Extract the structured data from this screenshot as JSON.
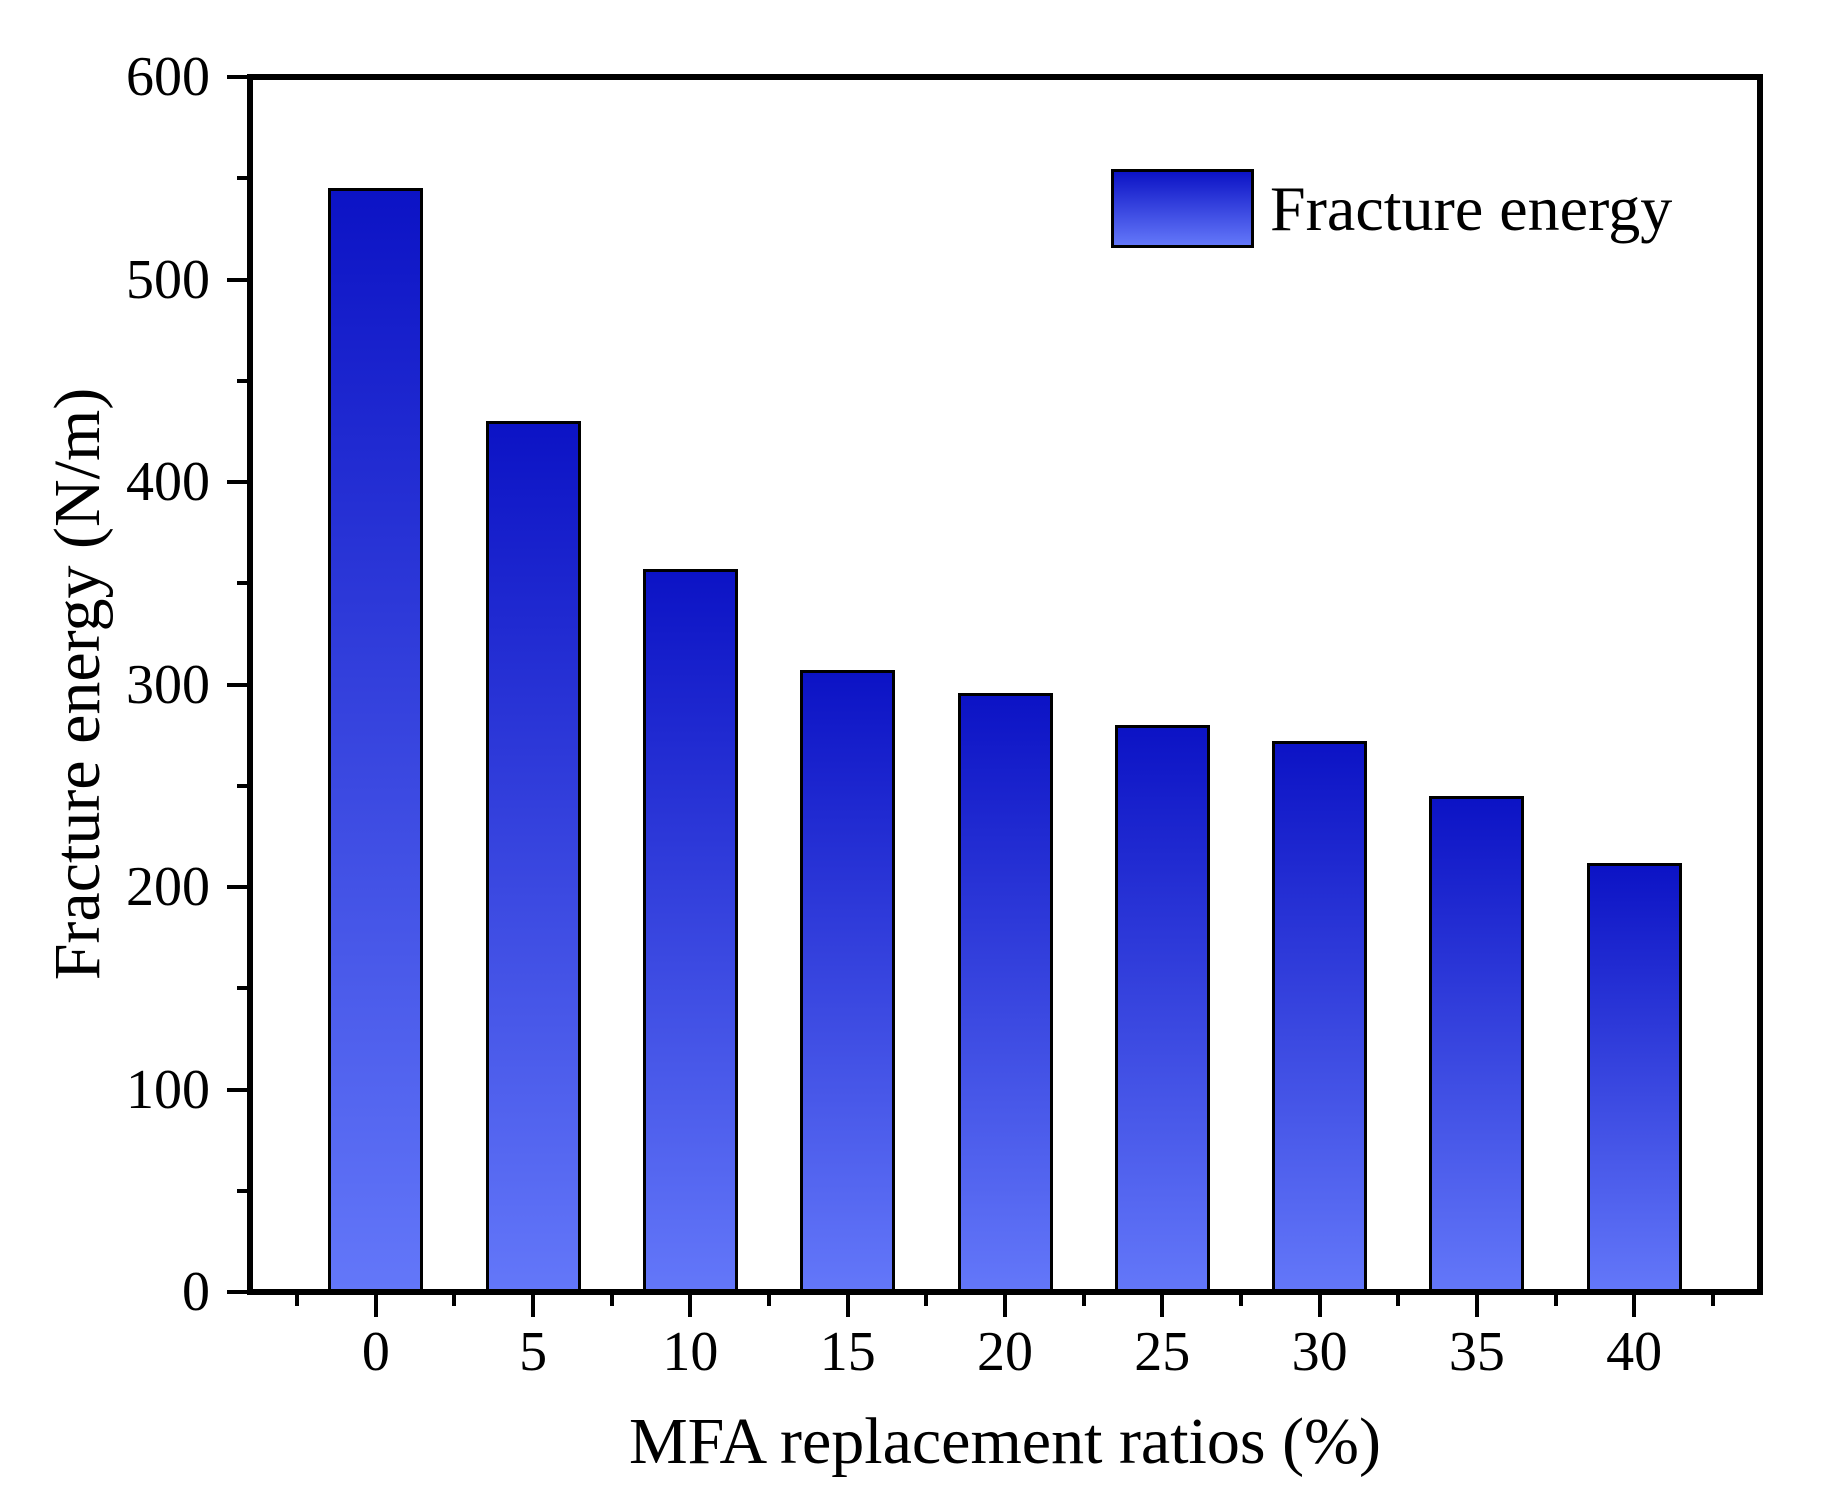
{
  "chart_data": {
    "type": "bar",
    "title": "",
    "categories": [
      0,
      5,
      10,
      15,
      20,
      25,
      30,
      35,
      40
    ],
    "values": [
      545,
      430,
      357,
      307,
      296,
      280,
      272,
      245,
      212
    ],
    "series_name": "Fracture energy",
    "xlabel": "MFA replacement ratios (%)",
    "ylabel": "Fracture energy (N/m)",
    "xlim": [
      -4,
      44
    ],
    "ylim": [
      0,
      600
    ],
    "y_major_ticks": [
      0,
      100,
      200,
      300,
      400,
      500,
      600
    ],
    "y_minor_ticks": [
      50,
      150,
      250,
      350,
      450,
      550
    ],
    "x_major_ticks": [
      0,
      5,
      10,
      15,
      20,
      25,
      30,
      35,
      40
    ],
    "x_minor_ticks": [
      -2.5,
      2.5,
      7.5,
      12.5,
      17.5,
      22.5,
      27.5,
      32.5,
      37.5,
      42.5
    ],
    "grid": "off",
    "legend": {
      "label": "Fracture energy",
      "position": "top-right"
    },
    "colors": {
      "bar_gradient_top": "#0c13c5",
      "bar_gradient_bottom": "#6377f9",
      "bar_border": "#000000",
      "axis": "#000000",
      "text": "#000000",
      "background": "#ffffff"
    }
  }
}
